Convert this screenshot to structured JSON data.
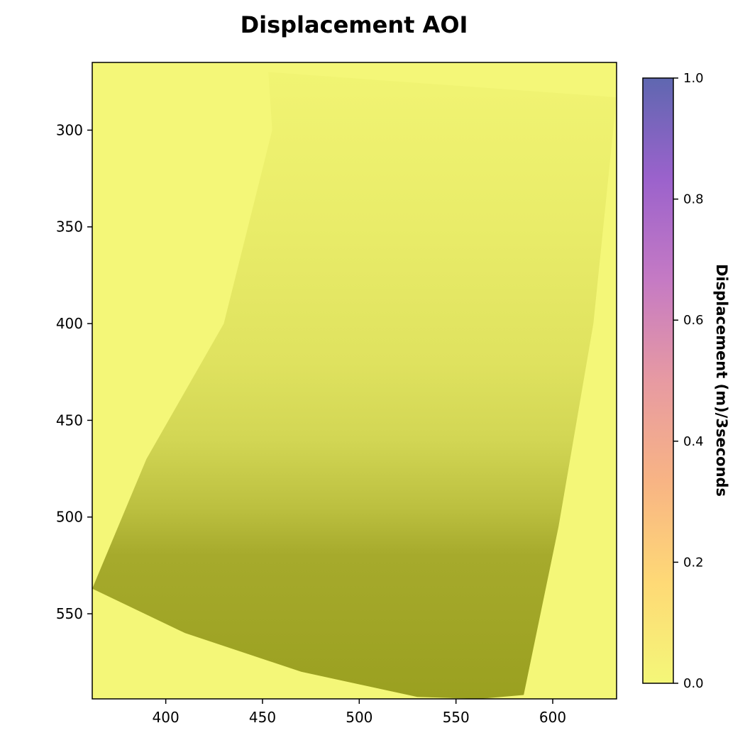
{
  "chart_data": {
    "type": "heatmap",
    "title": "Displacement AOI",
    "xlabel": "",
    "ylabel": "",
    "xlim": [
      362,
      633
    ],
    "ylim": [
      594,
      265
    ],
    "y_axis_inverted": true,
    "x_ticks": [
      400,
      450,
      500,
      550,
      600
    ],
    "x_tick_labels": [
      "400",
      "450",
      "500",
      "550",
      "600"
    ],
    "y_ticks": [
      300,
      350,
      400,
      450,
      500,
      550
    ],
    "y_tick_labels": [
      "300",
      "350",
      "400",
      "450",
      "500",
      "550"
    ],
    "grid": false,
    "legend": "none",
    "colorbar": {
      "label": "Displacement (m)/3seconds",
      "range": [
        0.0,
        1.0
      ],
      "ticks": [
        0.0,
        0.2,
        0.4,
        0.6,
        0.8,
        1.0
      ],
      "tick_labels": [
        "0.0",
        "0.2",
        "0.4",
        "0.6",
        "0.8",
        "1.0"
      ],
      "colors": [
        "#f4f778",
        "#fed976",
        "#f8b484",
        "#e79aa2",
        "#c57ac4",
        "#9b62cc",
        "#5f67b0"
      ]
    },
    "background_value": 0.0,
    "swath": {
      "outline": [
        [
          453,
          270
        ],
        [
          633,
          283
        ],
        [
          621,
          400
        ],
        [
          603,
          505
        ],
        [
          585,
          592
        ],
        [
          562,
          594
        ],
        [
          530,
          593
        ],
        [
          470,
          580
        ],
        [
          410,
          560
        ],
        [
          362,
          537
        ],
        [
          390,
          470
        ],
        [
          430,
          400
        ],
        [
          455,
          300
        ]
      ],
      "value_profile": {
        "y": [
          270,
          350,
          420,
          460,
          495,
          520,
          594
        ],
        "color": [
          "#f1f473",
          "#e9ec69",
          "#dfe25f",
          "#d2d654",
          "#bcc040",
          "#a6aa2c",
          "#9aa020"
        ]
      }
    }
  }
}
